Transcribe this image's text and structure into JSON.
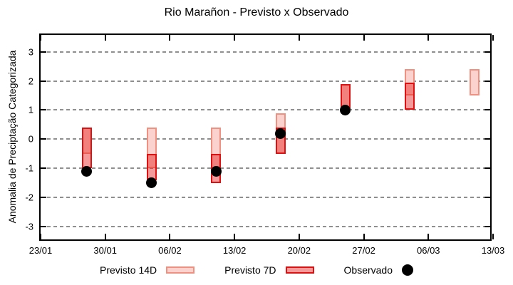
{
  "title": "Rio Marañon - Previsto x Observado",
  "colors": {
    "p14_fill": "#fbd2cd",
    "p14_border": "#f09080",
    "p7_fill": "rgba(230,30,30,0.45)",
    "p7_border": "#e01010",
    "observed": "#000000",
    "grid": "#8f8f8f",
    "frame": "#000000"
  },
  "chart_data": {
    "type": "bar",
    "subtype": "forecast-range-bars-with-observed-scatter",
    "title": "Rio Marañon - Previsto x Observado",
    "xlabel": "",
    "ylabel": "Anomalia de Preciptação Categorizada",
    "ylim": [
      -3.54,
      3.58
    ],
    "yticks": [
      3,
      2,
      1,
      0,
      -1,
      -2,
      -3
    ],
    "xtick_labels": [
      "23/01",
      "30/01",
      "06/02",
      "13/02",
      "20/02",
      "27/02",
      "06/03",
      "13/03"
    ],
    "xticks_days": [
      0,
      7,
      14,
      21,
      28,
      35,
      42,
      49
    ],
    "x_range_days": 49,
    "grid": "horizontal-dashed",
    "legend_position": "bottom-center",
    "series": [
      {
        "name": "Previsto 14D",
        "type": "range-bar",
        "style": "light-pink-box"
      },
      {
        "name": "Previsto 7D",
        "type": "range-bar",
        "style": "translucent-red-box-darkens-overlap"
      },
      {
        "name": "Observado",
        "type": "scatter",
        "style": "black-filled-circle"
      }
    ],
    "points": [
      {
        "date": "28/01",
        "day": 5,
        "previsto14": [
          -0.5,
          0.4
        ],
        "previsto7": [
          -1.0,
          0.4
        ],
        "observado": -1.1
      },
      {
        "date": "04/02",
        "day": 12,
        "previsto14": [
          -1.0,
          0.4
        ],
        "previsto7": [
          -1.4,
          -0.5
        ],
        "observado": -1.5
      },
      {
        "date": "11/02",
        "day": 19,
        "previsto14": [
          -1.0,
          0.4
        ],
        "previsto7": [
          -1.5,
          -0.5
        ],
        "observado": -1.1
      },
      {
        "date": "18/02",
        "day": 26,
        "previsto14": [
          -0.5,
          0.9
        ],
        "previsto7": [
          -0.5,
          0.4
        ],
        "observado": 0.2
      },
      {
        "date": "25/02",
        "day": 33,
        "previsto14": [
          1.0,
          1.9
        ],
        "previsto7": [
          1.0,
          1.9
        ],
        "observado": 1.0
      },
      {
        "date": "04/03",
        "day": 40,
        "previsto14": [
          1.5,
          2.4
        ],
        "previsto7": [
          1.0,
          1.95
        ],
        "observado": null
      },
      {
        "date": "11/03",
        "day": 47,
        "previsto14": [
          1.5,
          2.4
        ],
        "previsto7": null,
        "observado": null
      }
    ],
    "legend": [
      {
        "label": "Previsto 14D",
        "swatch": "box-light"
      },
      {
        "label": "Previsto 7D",
        "swatch": "box-dark"
      },
      {
        "label": "Observado",
        "swatch": "dot"
      }
    ]
  }
}
